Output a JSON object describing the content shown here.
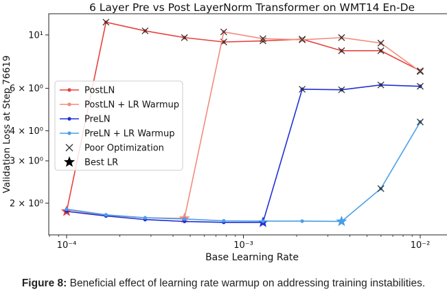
{
  "chart_data": {
    "type": "line",
    "title": "6 Layer Pre vs Post LayerNorm Transformer on WMT14 En-De",
    "xlabel": "Base Learning Rate",
    "ylabel": "Validation Loss at Step 76619",
    "xscale": "log",
    "yscale": "log",
    "xlim": [
      8e-05,
      1.25e-05
    ],
    "ylim": [
      1.68,
      11.9
    ],
    "x_ticks": [
      {
        "value": 0.0001,
        "label": "10⁻⁴"
      },
      {
        "value": 0.001,
        "label": "10⁻³"
      },
      {
        "value": 0.01,
        "label": "10⁻²"
      }
    ],
    "y_ticks": [
      {
        "value": 2,
        "label": "2 × 10⁰"
      },
      {
        "value": 3,
        "label": "3 × 10⁰"
      },
      {
        "value": 4,
        "label": "4 × 10⁰"
      },
      {
        "value": 6,
        "label": "6 × 10⁰"
      },
      {
        "value": 10,
        "label": "10¹"
      }
    ],
    "grid": false,
    "legend_position": "center-left",
    "legend": [
      {
        "label": "PostLN",
        "kind": "line-dot",
        "color": "#e8403a"
      },
      {
        "label": "PostLN + LR Warmup",
        "kind": "line-dot",
        "color": "#f28b7b"
      },
      {
        "label": "PreLN",
        "kind": "line-dot",
        "color": "#1f2fd6"
      },
      {
        "label": "PreLN + LR Warmup",
        "kind": "line-dot",
        "color": "#4a9ee8"
      },
      {
        "label": "Poor Optimization",
        "kind": "x",
        "color": "#333333"
      },
      {
        "label": "Best LR",
        "kind": "star",
        "color": "#000000"
      }
    ],
    "series": [
      {
        "name": "PostLN",
        "color": "#e8403a",
        "points": [
          {
            "x": 0.0001,
            "y": 1.85,
            "marker": "star"
          },
          {
            "x": 0.000167,
            "y": 11.3,
            "marker": "x"
          },
          {
            "x": 0.000278,
            "y": 10.4,
            "marker": "x"
          },
          {
            "x": 0.000464,
            "y": 9.75,
            "marker": "x"
          },
          {
            "x": 0.000774,
            "y": 9.35,
            "marker": "x"
          },
          {
            "x": 0.00129,
            "y": 9.45,
            "marker": "x"
          },
          {
            "x": 0.00215,
            "y": 9.6,
            "marker": "x"
          },
          {
            "x": 0.00359,
            "y": 8.6,
            "marker": "x"
          },
          {
            "x": 0.00599,
            "y": 8.6,
            "marker": "x"
          },
          {
            "x": 0.01,
            "y": 7.1,
            "marker": "x"
          }
        ]
      },
      {
        "name": "PostLN + LR Warmup",
        "color": "#f28b7b",
        "points": [
          {
            "x": 0.0001,
            "y": 1.88,
            "marker": "dot"
          },
          {
            "x": 0.000167,
            "y": 1.78,
            "marker": "dot"
          },
          {
            "x": 0.000278,
            "y": 1.74,
            "marker": "dot"
          },
          {
            "x": 0.000464,
            "y": 1.73,
            "marker": "star"
          },
          {
            "x": 0.000774,
            "y": 10.3,
            "marker": "x"
          },
          {
            "x": 0.00129,
            "y": 9.65,
            "marker": "x"
          },
          {
            "x": 0.00215,
            "y": 9.55,
            "marker": "x"
          },
          {
            "x": 0.00359,
            "y": 9.75,
            "marker": "x"
          },
          {
            "x": 0.00599,
            "y": 9.25,
            "marker": "x"
          },
          {
            "x": 0.01,
            "y": 7.05,
            "marker": "x"
          }
        ]
      },
      {
        "name": "PreLN",
        "color": "#1f2fd6",
        "points": [
          {
            "x": 0.0001,
            "y": 1.85,
            "marker": "dot"
          },
          {
            "x": 0.000167,
            "y": 1.77,
            "marker": "dot"
          },
          {
            "x": 0.000278,
            "y": 1.71,
            "marker": "dot"
          },
          {
            "x": 0.000464,
            "y": 1.68,
            "marker": "dot"
          },
          {
            "x": 0.000774,
            "y": 1.665,
            "marker": "dot"
          },
          {
            "x": 0.00129,
            "y": 1.665,
            "marker": "star"
          },
          {
            "x": 0.00215,
            "y": 5.95,
            "marker": "x"
          },
          {
            "x": 0.00359,
            "y": 5.92,
            "marker": "x"
          },
          {
            "x": 0.00599,
            "y": 6.2,
            "marker": "x"
          },
          {
            "x": 0.01,
            "y": 6.12,
            "marker": "x"
          }
        ]
      },
      {
        "name": "PreLN + LR Warmup",
        "color": "#4a9ee8",
        "points": [
          {
            "x": 0.0001,
            "y": 1.89,
            "marker": "dot"
          },
          {
            "x": 0.000167,
            "y": 1.79,
            "marker": "dot"
          },
          {
            "x": 0.000278,
            "y": 1.74,
            "marker": "dot"
          },
          {
            "x": 0.000464,
            "y": 1.72,
            "marker": "dot"
          },
          {
            "x": 0.000774,
            "y": 1.69,
            "marker": "dot"
          },
          {
            "x": 0.00129,
            "y": 1.685,
            "marker": "dot"
          },
          {
            "x": 0.00215,
            "y": 1.685,
            "marker": "dot"
          },
          {
            "x": 0.00359,
            "y": 1.68,
            "marker": "star"
          },
          {
            "x": 0.00599,
            "y": 2.3,
            "marker": "x"
          },
          {
            "x": 0.01,
            "y": 4.35,
            "marker": "x"
          }
        ]
      }
    ]
  },
  "caption": {
    "label": "Figure 8:",
    "text": " Beneficial effect of learning rate warmup on addressing training instabilities."
  }
}
